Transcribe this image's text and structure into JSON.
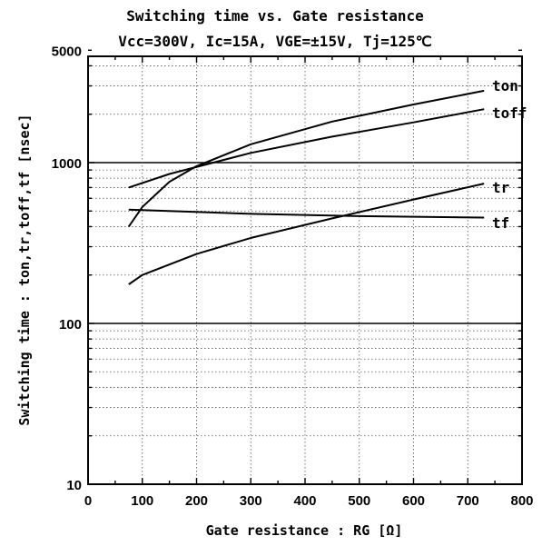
{
  "chart_data": {
    "type": "line",
    "title": "Switching time vs. Gate resistance",
    "subtitle": "Vcc=300V, Ic=15A, VGE=±15V, Tj=125℃",
    "xlabel": "Gate resistance : RG [Ω]",
    "ylabel": "Switching time : ton,tr,toff,tf [nsec]",
    "xlim": [
      0,
      800
    ],
    "ylim": [
      10,
      5000
    ],
    "yscale": "log",
    "x_ticks": [
      "0",
      "100",
      "200",
      "300",
      "400",
      "500",
      "600",
      "700",
      "800"
    ],
    "y_ticks": [
      "10",
      "100",
      "1000",
      "5000"
    ],
    "grid": "dotted minor, solid at decades",
    "series": [
      {
        "name": "ton",
        "x": [
          75,
          100,
          150,
          200,
          300,
          450,
          600,
          730
        ],
        "y": [
          400,
          530,
          760,
          950,
          1300,
          1800,
          2300,
          2800
        ]
      },
      {
        "name": "toff",
        "x": [
          75,
          150,
          300,
          450,
          600,
          730
        ],
        "y": [
          700,
          850,
          1150,
          1450,
          1780,
          2150
        ]
      },
      {
        "name": "tr",
        "x": [
          75,
          100,
          200,
          300,
          450,
          600,
          730
        ],
        "y": [
          175,
          200,
          270,
          340,
          450,
          590,
          740
        ]
      },
      {
        "name": "tf",
        "x": [
          75,
          300,
          500,
          730
        ],
        "y": [
          510,
          480,
          465,
          455
        ]
      }
    ]
  }
}
